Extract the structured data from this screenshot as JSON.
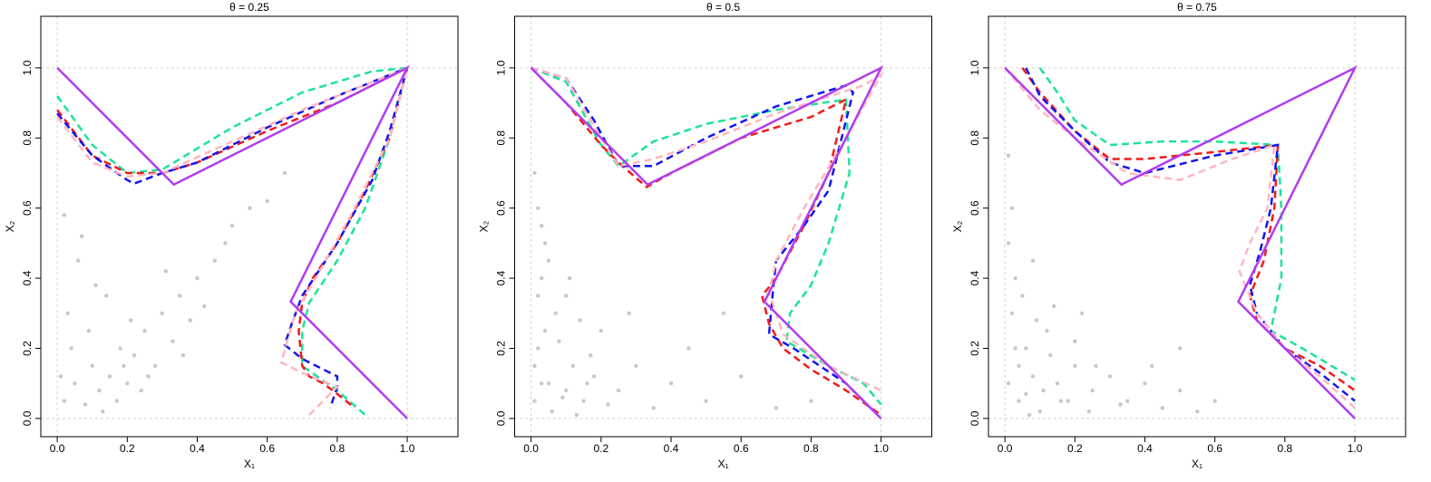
{
  "chart_data": [
    {
      "type": "scatter",
      "title": "θ = 0.25",
      "x_label": "X₁",
      "y_label": "X₂",
      "xlim": [
        -0.047,
        1.145
      ],
      "ylim": [
        -0.052,
        1.147
      ],
      "xticks": [
        {
          "value": 0,
          "label": "0.0"
        },
        0.2,
        0.4,
        0.6,
        0.8,
        {
          "value": 1,
          "label": "1.0"
        }
      ],
      "yticks": [
        {
          "value": 0,
          "label": "0.0"
        },
        0.2,
        0.4,
        0.6,
        0.8,
        {
          "value": 1,
          "label": "1.0"
        }
      ],
      "points": {
        "color": "#c8c8c8",
        "x": [
          0.02,
          0.05,
          0.08,
          0.1,
          0.12,
          0.15,
          0.18,
          0.2,
          0.22,
          0.25,
          0.28,
          0.3,
          0.33,
          0.35,
          0.38,
          0.4,
          0.42,
          0.45,
          0.5,
          0.55,
          0.6,
          0.03,
          0.06,
          0.09,
          0.14,
          0.17,
          0.21,
          0.26,
          0.31,
          0.04,
          0.07,
          0.11,
          0.13,
          0.19,
          0.24,
          0.36,
          0.48,
          0.65,
          0.02,
          0.01
        ],
        "y": [
          0.05,
          0.1,
          0.04,
          0.15,
          0.08,
          0.12,
          0.2,
          0.1,
          0.18,
          0.25,
          0.15,
          0.3,
          0.22,
          0.35,
          0.28,
          0.4,
          0.32,
          0.45,
          0.55,
          0.6,
          0.62,
          0.3,
          0.45,
          0.25,
          0.35,
          0.05,
          0.28,
          0.12,
          0.42,
          0.2,
          0.52,
          0.38,
          0.02,
          0.15,
          0.08,
          0.18,
          0.5,
          0.7,
          0.58,
          0.12
        ]
      },
      "series": [
        {
          "color": "#1de39a",
          "style": "dashed",
          "x": [
            0,
            0.1,
            0.2,
            0.3,
            0.5,
            0.7,
            0.9,
            1,
            0.95,
            0.88,
            0.8,
            0.72,
            0.7,
            0.7,
            0.8,
            0.88
          ],
          "y": [
            0.92,
            0.78,
            0.7,
            0.71,
            0.83,
            0.93,
            0.99,
            1,
            0.8,
            0.6,
            0.45,
            0.33,
            0.25,
            0.15,
            0.08,
            0.01
          ]
        },
        {
          "color": "#f21b1b",
          "style": "dashed",
          "x": [
            0,
            0.1,
            0.2,
            0.3,
            0.4,
            0.6,
            0.8,
            1,
            0.95,
            0.88,
            0.8,
            0.73,
            0.7,
            0.69,
            0.7,
            0.72,
            0.76,
            0.8,
            0.85
          ],
          "y": [
            0.88,
            0.75,
            0.7,
            0.7,
            0.73,
            0.82,
            0.9,
            1,
            0.8,
            0.65,
            0.5,
            0.4,
            0.33,
            0.25,
            0.15,
            0.12,
            0.1,
            0.07,
            0.03
          ]
        },
        {
          "color": "#1414f0",
          "style": "dashed",
          "x": [
            0,
            0.1,
            0.2,
            0.22,
            0.3,
            0.4,
            0.6,
            0.8,
            1,
            0.95,
            0.9,
            0.8,
            0.7,
            0.67,
            0.65,
            0.7,
            0.8,
            0.8,
            0.78
          ],
          "y": [
            0.87,
            0.75,
            0.68,
            0.67,
            0.7,
            0.73,
            0.83,
            0.92,
            1,
            0.82,
            0.68,
            0.5,
            0.35,
            0.27,
            0.21,
            0.17,
            0.12,
            0.09,
            0.03
          ]
        },
        {
          "color": "#ffb6c1",
          "style": "dashed",
          "x": [
            0,
            0.1,
            0.2,
            0.3,
            0.5,
            0.7,
            0.9,
            1,
            0.95,
            0.85,
            0.75,
            0.68,
            0.64,
            0.7,
            0.8,
            0.72
          ],
          "y": [
            0.86,
            0.73,
            0.69,
            0.7,
            0.79,
            0.88,
            0.96,
            1,
            0.8,
            0.6,
            0.42,
            0.3,
            0.16,
            0.13,
            0.09,
            0.01
          ]
        },
        {
          "color": "#b23cf0",
          "style": "solid",
          "x": [
            0,
            0.333,
            1,
            0.667,
            1
          ],
          "y": [
            1,
            0.667,
            1,
            0.333,
            0
          ]
        }
      ]
    },
    {
      "type": "scatter",
      "title": "θ = 0.5",
      "x_label": "X₁",
      "y_label": "X₂",
      "xlim": [
        -0.047,
        1.145
      ],
      "ylim": [
        -0.052,
        1.147
      ],
      "xticks": [
        {
          "value": 0,
          "label": "0.0"
        },
        0.2,
        0.4,
        0.6,
        0.8,
        {
          "value": 1,
          "label": "1.0"
        }
      ],
      "yticks": [
        {
          "value": 0,
          "label": "0.0"
        },
        0.2,
        0.4,
        0.6,
        0.8,
        {
          "value": 1,
          "label": "1.0"
        }
      ],
      "points": {
        "color": "#c8c8c8",
        "x": [
          0.01,
          0.02,
          0.03,
          0.05,
          0.07,
          0.1,
          0.12,
          0.15,
          0.18,
          0.2,
          0.25,
          0.3,
          0.35,
          0.4,
          0.45,
          0.5,
          0.6,
          0.7,
          0.02,
          0.04,
          0.06,
          0.08,
          0.1,
          0.13,
          0.17,
          0.22,
          0.28,
          0.01,
          0.03,
          0.05,
          0.09,
          0.14,
          0.02,
          0.55,
          0.8,
          0.01,
          0.04,
          0.11,
          0.16,
          0.03
        ],
        "y": [
          0.05,
          0.2,
          0.4,
          0.1,
          0.3,
          0.08,
          0.15,
          0.05,
          0.12,
          0.25,
          0.08,
          0.15,
          0.03,
          0.1,
          0.2,
          0.05,
          0.12,
          0.03,
          0.6,
          0.5,
          0.02,
          0.22,
          0.35,
          0.01,
          0.18,
          0.04,
          0.3,
          0.7,
          0.1,
          0.45,
          0.06,
          0.28,
          0.35,
          0.3,
          0.05,
          0.15,
          0.25,
          0.4,
          0.1,
          0.55
        ]
      },
      "series": [
        {
          "color": "#1de39a",
          "style": "dashed",
          "x": [
            0,
            0.1,
            0.2,
            0.25,
            0.35,
            0.5,
            0.7,
            0.9,
            0.91,
            0.85,
            0.8,
            0.74,
            0.73,
            0.85,
            0.95,
            1
          ],
          "y": [
            1,
            0.96,
            0.78,
            0.72,
            0.79,
            0.84,
            0.88,
            0.91,
            0.7,
            0.5,
            0.38,
            0.3,
            0.22,
            0.15,
            0.1,
            0.04
          ]
        },
        {
          "color": "#f21b1b",
          "style": "dashed",
          "x": [
            0,
            0.1,
            0.2,
            0.25,
            0.33,
            0.4,
            0.6,
            0.8,
            0.9,
            0.85,
            0.78,
            0.7,
            0.66,
            0.68,
            0.72,
            0.8,
            0.9,
            1
          ],
          "y": [
            1,
            0.9,
            0.78,
            0.73,
            0.66,
            0.7,
            0.8,
            0.86,
            0.91,
            0.7,
            0.55,
            0.4,
            0.35,
            0.27,
            0.2,
            0.14,
            0.08,
            0.01
          ]
        },
        {
          "color": "#1414f0",
          "style": "dashed",
          "x": [
            0,
            0.1,
            0.18,
            0.25,
            0.28,
            0.35,
            0.5,
            0.7,
            0.9,
            0.92,
            0.85,
            0.78,
            0.7,
            0.69,
            0.68,
            0.75,
            0.9,
            0.99
          ],
          "y": [
            1,
            0.97,
            0.85,
            0.72,
            0.72,
            0.72,
            0.8,
            0.89,
            0.95,
            0.93,
            0.65,
            0.55,
            0.45,
            0.35,
            0.24,
            0.2,
            0.1,
            0.01
          ]
        },
        {
          "color": "#ffb6c1",
          "style": "dashed",
          "x": [
            0,
            0.1,
            0.2,
            0.25,
            0.35,
            0.5,
            0.7,
            0.95,
            1,
            0.9,
            0.78,
            0.7,
            0.68,
            0.72,
            0.85,
            1
          ],
          "y": [
            1,
            0.97,
            0.8,
            0.72,
            0.74,
            0.79,
            0.87,
            0.95,
            0.98,
            0.8,
            0.6,
            0.45,
            0.36,
            0.24,
            0.15,
            0.08
          ]
        },
        {
          "color": "#b23cf0",
          "style": "solid",
          "x": [
            0,
            0.333,
            1,
            0.667,
            1
          ],
          "y": [
            1,
            0.667,
            1,
            0.333,
            0
          ]
        }
      ]
    },
    {
      "type": "scatter",
      "title": "θ = 0.75",
      "x_label": "X₁",
      "y_label": "X₂",
      "xlim": [
        -0.047,
        1.145
      ],
      "ylim": [
        -0.052,
        1.147
      ],
      "xticks": [
        {
          "value": 0,
          "label": "0.0"
        },
        0.2,
        0.4,
        0.6,
        0.8,
        {
          "value": 1,
          "label": "1.0"
        }
      ],
      "yticks": [
        {
          "value": 0,
          "label": "0.0"
        },
        0.2,
        0.4,
        0.6,
        0.8,
        {
          "value": 1,
          "label": "1.0"
        }
      ],
      "points": {
        "color": "#c8c8c8",
        "x": [
          0.01,
          0.02,
          0.04,
          0.06,
          0.08,
          0.1,
          0.12,
          0.15,
          0.18,
          0.2,
          0.22,
          0.25,
          0.3,
          0.35,
          0.4,
          0.45,
          0.5,
          0.55,
          0.6,
          0.01,
          0.03,
          0.05,
          0.07,
          0.09,
          0.13,
          0.16,
          0.2,
          0.26,
          0.33,
          0.02,
          0.04,
          0.08,
          0.11,
          0.14,
          0.01,
          0.03,
          0.24,
          0.42,
          0.5,
          0.06
        ],
        "y": [
          0.1,
          0.3,
          0.05,
          0.2,
          0.12,
          0.02,
          0.25,
          0.1,
          0.05,
          0.15,
          0.3,
          0.08,
          0.12,
          0.05,
          0.1,
          0.03,
          0.08,
          0.02,
          0.05,
          0.5,
          0.4,
          0.35,
          0.01,
          0.28,
          0.18,
          0.05,
          0.22,
          0.15,
          0.04,
          0.6,
          0.15,
          0.45,
          0.08,
          0.32,
          0.75,
          0.2,
          0.02,
          0.15,
          0.2,
          0.07
        ]
      },
      "series": [
        {
          "color": "#1de39a",
          "style": "dashed",
          "x": [
            0.1,
            0.15,
            0.2,
            0.3,
            0.45,
            0.6,
            0.78,
            0.79,
            0.79,
            0.76,
            0.85,
            1
          ],
          "y": [
            1,
            0.93,
            0.85,
            0.78,
            0.79,
            0.79,
            0.78,
            0.6,
            0.4,
            0.25,
            0.2,
            0.11
          ]
        },
        {
          "color": "#f21b1b",
          "style": "dashed",
          "x": [
            0.05,
            0.1,
            0.2,
            0.3,
            0.4,
            0.6,
            0.78,
            0.77,
            0.74,
            0.7,
            0.72,
            0.8,
            0.9,
            1
          ],
          "y": [
            1,
            0.93,
            0.82,
            0.74,
            0.74,
            0.76,
            0.78,
            0.6,
            0.45,
            0.35,
            0.28,
            0.2,
            0.15,
            0.08
          ]
        },
        {
          "color": "#1414f0",
          "style": "dashed",
          "x": [
            0.06,
            0.1,
            0.2,
            0.3,
            0.4,
            0.6,
            0.78,
            0.76,
            0.73,
            0.7,
            0.72,
            0.8,
            0.9,
            1
          ],
          "y": [
            1,
            0.92,
            0.82,
            0.73,
            0.7,
            0.75,
            0.78,
            0.6,
            0.48,
            0.38,
            0.3,
            0.2,
            0.13,
            0.05
          ]
        },
        {
          "color": "#ffb6c1",
          "style": "dashed",
          "x": [
            0,
            0.1,
            0.2,
            0.35,
            0.5,
            0.65,
            0.77,
            0.75,
            0.7,
            0.67,
            0.72,
            0.8,
            0.9,
            1
          ],
          "y": [
            1,
            0.88,
            0.8,
            0.7,
            0.68,
            0.74,
            0.78,
            0.6,
            0.5,
            0.42,
            0.3,
            0.2,
            0.12,
            0.03
          ]
        },
        {
          "color": "#b23cf0",
          "style": "solid",
          "x": [
            0,
            0.333,
            1,
            0.667,
            1
          ],
          "y": [
            1,
            0.667,
            1,
            0.333,
            0
          ]
        }
      ]
    }
  ]
}
